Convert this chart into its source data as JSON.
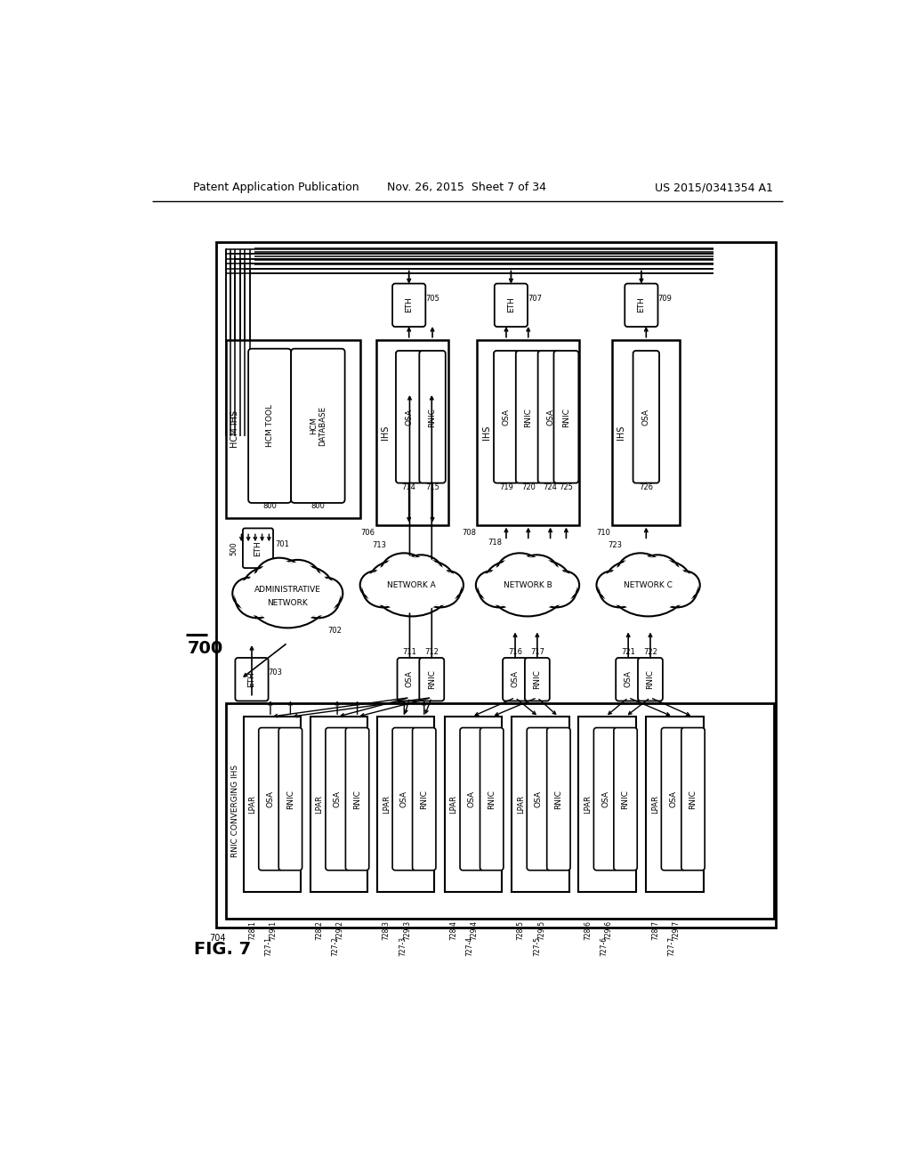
{
  "bg": "#ffffff",
  "header_left": "Patent Application Publication",
  "header_mid": "Nov. 26, 2015  Sheet 7 of 34",
  "header_right": "US 2015/0341354 A1"
}
